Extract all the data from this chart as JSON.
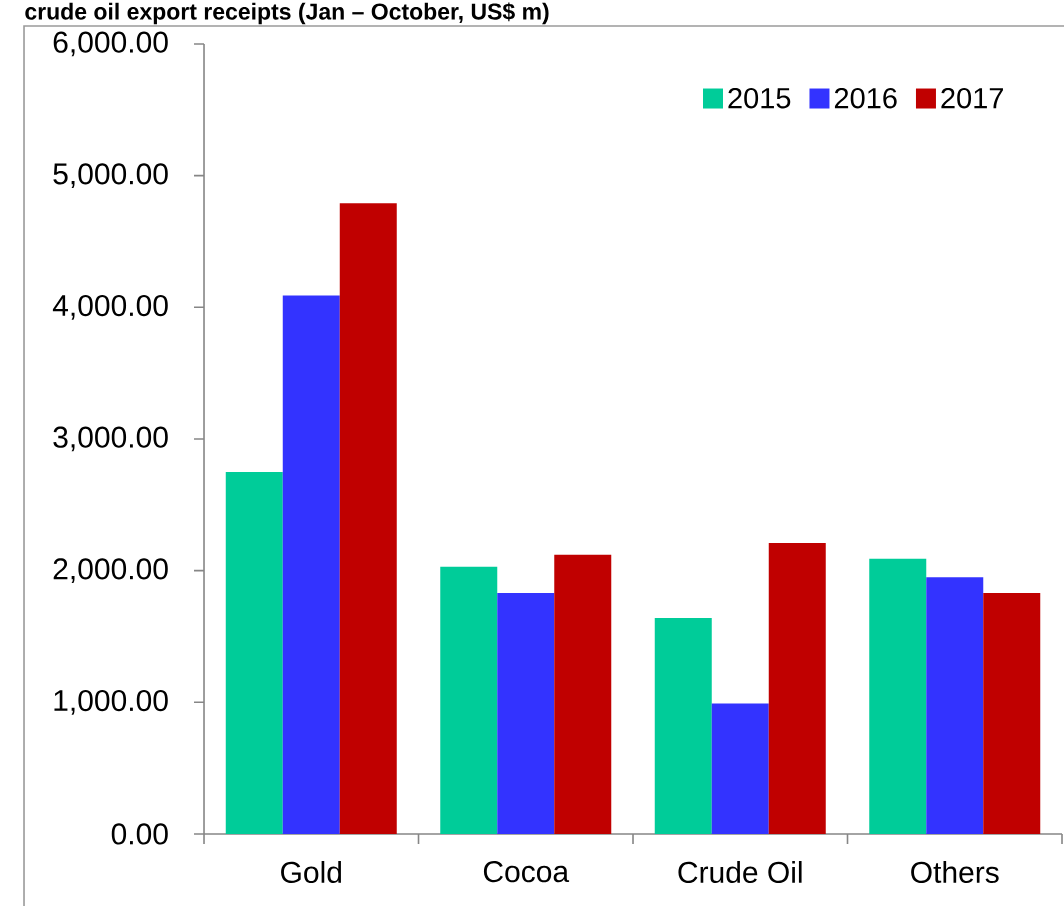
{
  "chart_data": {
    "type": "bar",
    "title": "crude oil export receipts (Jan – October, US$ m)",
    "categories": [
      "Gold",
      "Cocoa",
      "Crude Oil",
      "Others"
    ],
    "series": [
      {
        "name": "2015",
        "color": "#00cc99",
        "values": [
          2750,
          2030,
          1640,
          2090
        ]
      },
      {
        "name": "2016",
        "color": "#3333ff",
        "values": [
          4090,
          1830,
          990,
          1950
        ]
      },
      {
        "name": "2017",
        "color": "#c00000",
        "values": [
          4790,
          2120,
          2210,
          1830
        ]
      }
    ],
    "ylim": [
      0,
      6000
    ],
    "yticks": [
      {
        "value": 0,
        "label": "0.00"
      },
      {
        "value": 1000,
        "label": "1,000.00"
      },
      {
        "value": 2000,
        "label": "2,000.00"
      },
      {
        "value": 3000,
        "label": "3,000.00"
      },
      {
        "value": 4000,
        "label": "4,000.00"
      },
      {
        "value": 5000,
        "label": "5,000.00"
      },
      {
        "value": 6000,
        "label": "6,000.00"
      }
    ],
    "legend": "top right"
  }
}
